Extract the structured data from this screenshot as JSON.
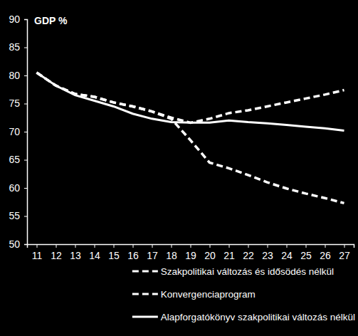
{
  "chart_data": {
    "type": "line",
    "y_label": "GDP %",
    "categories": [
      "11",
      "12",
      "13",
      "14",
      "15",
      "16",
      "17",
      "18",
      "19",
      "20",
      "21",
      "22",
      "23",
      "24",
      "25",
      "26",
      "27"
    ],
    "series": [
      {
        "name": "Szakpolitikai változás és idősödés nélkül",
        "color": "#ffffff",
        "line_style": "dashed",
        "values": [
          80.5,
          78.2,
          76.7,
          76.2,
          75.2,
          74.5,
          73.6,
          72.5,
          71.6,
          72.3,
          73.3,
          73.8,
          74.5,
          75.2,
          75.9,
          76.6,
          77.4
        ]
      },
      {
        "name": "Konvergenciaprogram",
        "color": "#ffffff",
        "line_style": "dashed",
        "values": [
          80.5,
          78.2,
          76.7,
          76.2,
          75.2,
          74.5,
          73.6,
          72.3,
          68.5,
          64.5,
          63.5,
          62.3,
          61.0,
          59.9,
          59.0,
          58.2,
          57.3
        ]
      },
      {
        "name": "Alapforgatókönyv szakpolitikai változás nélkül",
        "color": "#ffffff",
        "line_style": "solid",
        "values": [
          80.5,
          78.2,
          76.5,
          75.5,
          74.5,
          73.2,
          72.3,
          71.7,
          71.6,
          71.6,
          72.0,
          71.7,
          71.5,
          71.2,
          70.9,
          70.6,
          70.2
        ]
      }
    ],
    "ylim": [
      50,
      90
    ],
    "yticks": [
      50,
      55,
      60,
      65,
      70,
      75,
      80,
      85,
      90
    ],
    "grid": false,
    "legend": "bottom"
  }
}
